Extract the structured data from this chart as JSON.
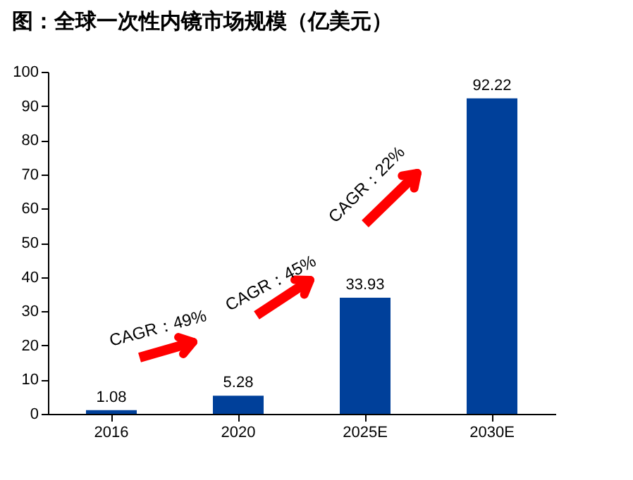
{
  "chart_data": {
    "type": "bar",
    "title": "图：全球一次性内镜市场规模（亿美元）",
    "categories": [
      "2016",
      "2020",
      "2025E",
      "2030E"
    ],
    "values": [
      1.08,
      5.28,
      33.93,
      92.22
    ],
    "color": "#00409a",
    "ylim": [
      0,
      100
    ],
    "yticks": [
      0,
      10,
      20,
      30,
      40,
      50,
      60,
      70,
      80,
      90,
      100
    ],
    "grid": false,
    "data_labels": true,
    "annotations": [
      "CAGR：49%",
      "CAGR：45%",
      "CAGR：22%"
    ]
  }
}
